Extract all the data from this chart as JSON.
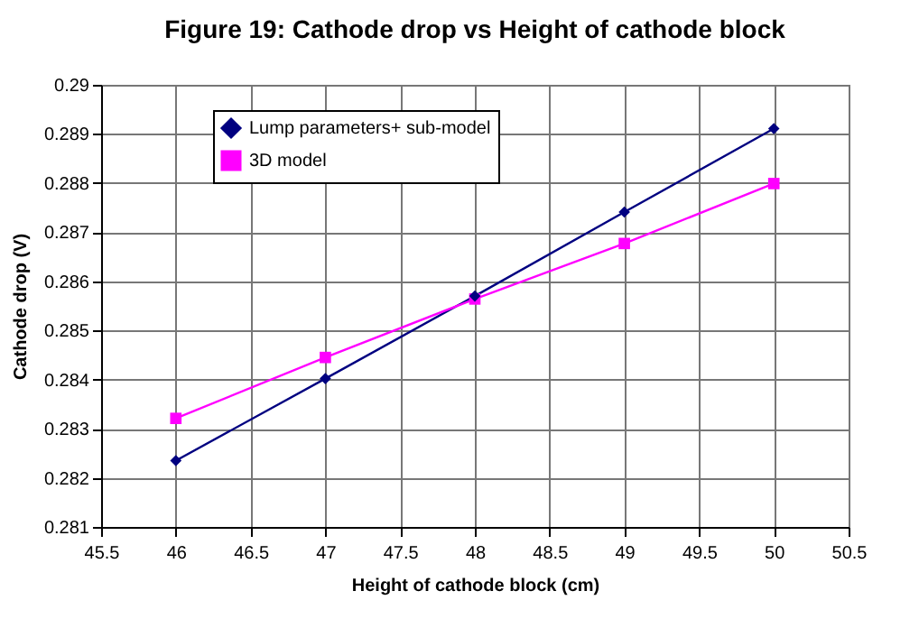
{
  "chart_data": {
    "type": "line",
    "title": "Figure 19: Cathode drop vs Height of cathode block",
    "xlabel": "Height of cathode block (cm)",
    "ylabel": "Cathode drop (V)",
    "x": [
      46,
      47,
      48,
      49,
      50
    ],
    "series": [
      {
        "name": "Lump parameters+ sub-model",
        "color": "#000080",
        "marker": "diamond",
        "values": [
          0.28235,
          0.28402,
          0.2857,
          0.28741,
          0.28911
        ]
      },
      {
        "name": "3D model",
        "color": "#ff00ff",
        "marker": "square",
        "values": [
          0.28321,
          0.28445,
          0.28564,
          0.28677,
          0.28799
        ]
      }
    ],
    "xlim": [
      45.5,
      50.5
    ],
    "xticks": [
      45.5,
      46,
      46.5,
      47,
      47.5,
      48,
      48.5,
      49,
      49.5,
      50,
      50.5
    ],
    "ylim": [
      0.281,
      0.29
    ],
    "yticks": [
      0.281,
      0.282,
      0.283,
      0.284,
      0.285,
      0.286,
      0.287,
      0.288,
      0.289,
      0.29
    ],
    "grid": true,
    "legend": "top left",
    "line_style": "solid"
  }
}
